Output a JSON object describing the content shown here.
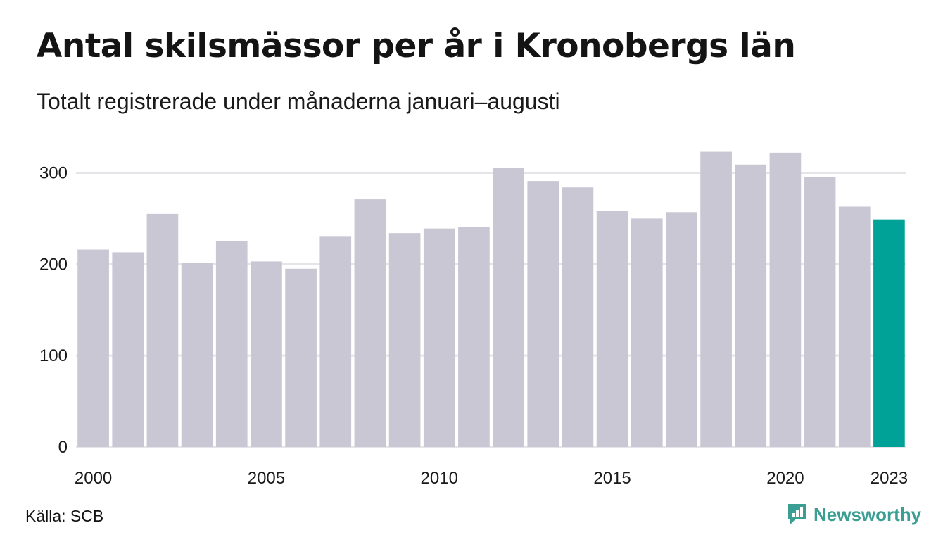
{
  "chart_data": {
    "type": "bar",
    "title": "Antal skilsmässor per år i Kronobergs län",
    "subtitle": "Totalt registrerade under månaderna januari–augusti",
    "categories": [
      "2000",
      "2001",
      "2002",
      "2003",
      "2004",
      "2005",
      "2006",
      "2007",
      "2008",
      "2009",
      "2010",
      "2011",
      "2012",
      "2013",
      "2014",
      "2015",
      "2016",
      "2017",
      "2018",
      "2019",
      "2020",
      "2021",
      "2022",
      "2023"
    ],
    "values": [
      216,
      213,
      255,
      201,
      225,
      203,
      195,
      230,
      271,
      234,
      239,
      241,
      305,
      291,
      284,
      258,
      250,
      257,
      323,
      309,
      322,
      295,
      263,
      249
    ],
    "x_tick_labels": [
      "2000",
      "2005",
      "2010",
      "2015",
      "2020",
      "2023"
    ],
    "y_ticks": [
      0,
      100,
      200,
      300
    ],
    "ylim": [
      0,
      335
    ],
    "xlabel": "",
    "ylabel": "",
    "grid": true,
    "colors": {
      "bar": "#c8c7d3",
      "highlight": "#00a298",
      "grid": "#e4e4e9"
    },
    "highlight_category": "2023"
  },
  "footer": {
    "source": "Källa: SCB",
    "brand": "Newsworthy",
    "brand_icon": "newsworthy-logo-icon",
    "brand_color": "#3a9e92"
  }
}
